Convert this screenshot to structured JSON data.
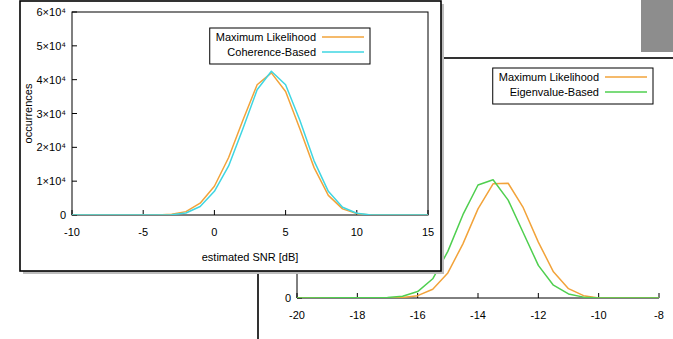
{
  "chart_data": [
    {
      "type": "line",
      "x_label": "estimated SNR [dB]",
      "y_label": "occurrences",
      "x": [
        -10,
        -4,
        -3,
        -2,
        -1,
        0,
        1,
        2,
        3,
        4,
        5,
        6,
        7,
        8,
        9,
        10,
        11,
        15
      ],
      "series": [
        {
          "name": "Maximum Likelihood",
          "color": "#f2a33a",
          "values": [
            0,
            0,
            200,
            1000,
            3500,
            8500,
            17000,
            28000,
            38500,
            42000,
            36500,
            25500,
            14000,
            5800,
            1800,
            400,
            0,
            0
          ]
        },
        {
          "name": "Coherence-Based",
          "color": "#3fd6e2",
          "values": [
            0,
            0,
            100,
            600,
            2500,
            7000,
            14500,
            25500,
            37000,
            42500,
            38500,
            28000,
            16000,
            7000,
            2300,
            500,
            0,
            0
          ]
        }
      ],
      "xlim": [
        -10,
        15
      ],
      "xticks": [
        -10,
        -5,
        0,
        5,
        10,
        15
      ],
      "ylim": [
        0,
        60000
      ],
      "yticks": [
        0,
        {
          "value": 10000,
          "label": "1×10⁴"
        },
        {
          "value": 20000,
          "label": "2×10⁴"
        },
        {
          "value": 30000,
          "label": "3×10⁴"
        },
        {
          "value": 40000,
          "label": "4×10⁴"
        },
        {
          "value": 50000,
          "label": "5×10⁴"
        },
        {
          "value": 60000,
          "label": "6×10⁴"
        }
      ],
      "legend": "top-right",
      "grid": false
    },
    {
      "type": "line",
      "x": [
        -20,
        -17,
        -16.5,
        -16,
        -15.5,
        -15,
        -14.5,
        -14,
        -13.5,
        -13,
        -12.5,
        -12,
        -11.5,
        -11,
        -10.5,
        -10,
        -8
      ],
      "series": [
        {
          "name": "Maximum Likelihood",
          "color": "#f2a33a",
          "values": [
            0,
            0,
            100,
            400,
            1500,
            4300,
            9300,
            15300,
            19600,
            19700,
            15500,
            9600,
            4500,
            1600,
            400,
            0,
            0
          ]
        },
        {
          "name": "Eigenvalue-Based",
          "color": "#4fcf4f",
          "values": [
            0,
            100,
            300,
            1100,
            3300,
            8000,
            14300,
            19400,
            20300,
            16800,
            11200,
            5600,
            2200,
            700,
            150,
            0,
            0
          ]
        }
      ],
      "xlim": [
        -20,
        -8
      ],
      "xticks": [
        -20,
        -18,
        -16,
        -14,
        -12,
        -10,
        -8
      ],
      "ylim": [
        0,
        40000
      ],
      "yticks": [
        0
      ],
      "legend": "top-right",
      "grid": false
    }
  ]
}
